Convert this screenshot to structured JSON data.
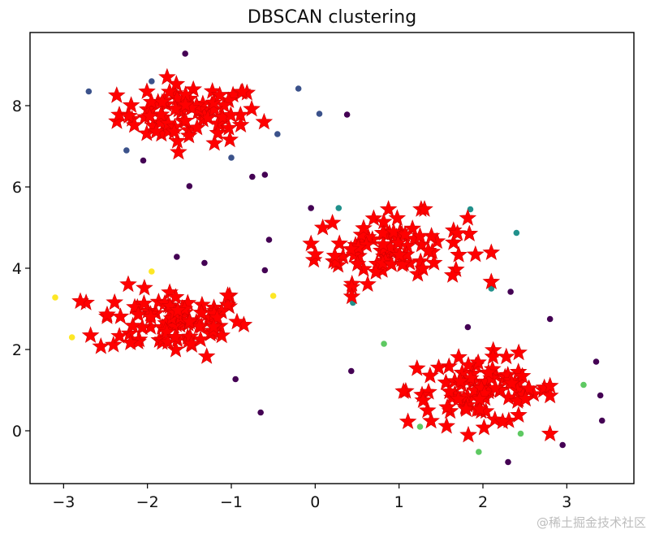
{
  "chart_data": {
    "type": "scatter",
    "title": "DBSCAN clustering",
    "xlabel": "",
    "ylabel": "",
    "xlim": [
      -3.4,
      3.8
    ],
    "ylim": [
      -1.3,
      9.8
    ],
    "xticks": [
      -3,
      -2,
      -1,
      0,
      1,
      2,
      3
    ],
    "yticks": [
      0,
      2,
      4,
      6,
      8
    ],
    "xtick_labels": [
      "−3",
      "−2",
      "−1",
      "0",
      "1",
      "2",
      "3"
    ],
    "ytick_labels": [
      "0",
      "2",
      "4",
      "6",
      "8"
    ],
    "grid": false,
    "legend": "none",
    "core_points": {
      "marker": "star",
      "color": "#ff0000",
      "clusters": [
        {
          "center": [
            -1.5,
            7.8
          ],
          "spread": [
            0.42,
            0.36
          ],
          "count": 85,
          "xrange": [
            -2.65,
            -0.3
          ],
          "yrange": [
            6.75,
            8.85
          ]
        },
        {
          "center": [
            -1.7,
            2.7
          ],
          "spread": [
            0.45,
            0.42
          ],
          "count": 95,
          "xrange": [
            -2.8,
            -0.55
          ],
          "yrange": [
            1.6,
            3.6
          ]
        },
        {
          "center": [
            0.9,
            4.5
          ],
          "spread": [
            0.45,
            0.42
          ],
          "count": 90,
          "xrange": [
            -0.05,
            2.1
          ],
          "yrange": [
            3.3,
            5.45
          ]
        },
        {
          "center": [
            2.0,
            1.0
          ],
          "spread": [
            0.45,
            0.42
          ],
          "count": 95,
          "xrange": [
            0.9,
            2.8
          ],
          "yrange": [
            -0.45,
            2.15
          ]
        }
      ]
    },
    "border_points": [
      {
        "x": -2.7,
        "y": 8.35,
        "color": "#3b528b"
      },
      {
        "x": -1.95,
        "y": 8.6,
        "color": "#3b528b"
      },
      {
        "x": -0.2,
        "y": 8.42,
        "color": "#3b528b"
      },
      {
        "x": 0.05,
        "y": 7.8,
        "color": "#3b528b"
      },
      {
        "x": -0.45,
        "y": 7.3,
        "color": "#3b528b"
      },
      {
        "x": -2.25,
        "y": 6.9,
        "color": "#3b528b"
      },
      {
        "x": -1.0,
        "y": 6.72,
        "color": "#3b528b"
      },
      {
        "x": -3.1,
        "y": 3.28,
        "color": "#fde725"
      },
      {
        "x": -1.95,
        "y": 3.92,
        "color": "#fde725"
      },
      {
        "x": -0.5,
        "y": 3.32,
        "color": "#fde725"
      },
      {
        "x": -2.9,
        "y": 2.3,
        "color": "#fde725"
      },
      {
        "x": 0.28,
        "y": 5.48,
        "color": "#21918c"
      },
      {
        "x": 1.85,
        "y": 5.45,
        "color": "#21918c"
      },
      {
        "x": 2.4,
        "y": 4.87,
        "color": "#21918c"
      },
      {
        "x": 2.1,
        "y": 3.5,
        "color": "#21918c"
      },
      {
        "x": 0.45,
        "y": 3.15,
        "color": "#21918c"
      },
      {
        "x": 0.82,
        "y": 2.14,
        "color": "#5ec962"
      },
      {
        "x": 3.2,
        "y": 1.13,
        "color": "#5ec962"
      },
      {
        "x": 1.25,
        "y": 0.1,
        "color": "#5ec962"
      },
      {
        "x": 2.45,
        "y": -0.07,
        "color": "#5ec962"
      },
      {
        "x": 1.95,
        "y": -0.52,
        "color": "#5ec962"
      }
    ],
    "noise_points": [
      {
        "x": -1.55,
        "y": 9.28
      },
      {
        "x": 0.38,
        "y": 7.78
      },
      {
        "x": -2.05,
        "y": 6.65
      },
      {
        "x": -0.75,
        "y": 6.25
      },
      {
        "x": -0.6,
        "y": 6.3
      },
      {
        "x": -1.5,
        "y": 6.02
      },
      {
        "x": -0.05,
        "y": 5.48
      },
      {
        "x": -0.55,
        "y": 4.7
      },
      {
        "x": -1.65,
        "y": 4.28
      },
      {
        "x": -1.32,
        "y": 4.13
      },
      {
        "x": -0.6,
        "y": 3.95
      },
      {
        "x": 2.33,
        "y": 3.42
      },
      {
        "x": 2.8,
        "y": 2.75
      },
      {
        "x": 1.82,
        "y": 2.55
      },
      {
        "x": 3.35,
        "y": 1.7
      },
      {
        "x": 0.43,
        "y": 1.47
      },
      {
        "x": -0.95,
        "y": 1.27
      },
      {
        "x": 3.4,
        "y": 0.87
      },
      {
        "x": -0.65,
        "y": 0.45
      },
      {
        "x": 3.42,
        "y": 0.25
      },
      {
        "x": 2.95,
        "y": -0.35
      },
      {
        "x": 2.3,
        "y": -0.77
      }
    ],
    "noise_color": "#440154"
  },
  "watermark": "@稀土掘金技术社区"
}
